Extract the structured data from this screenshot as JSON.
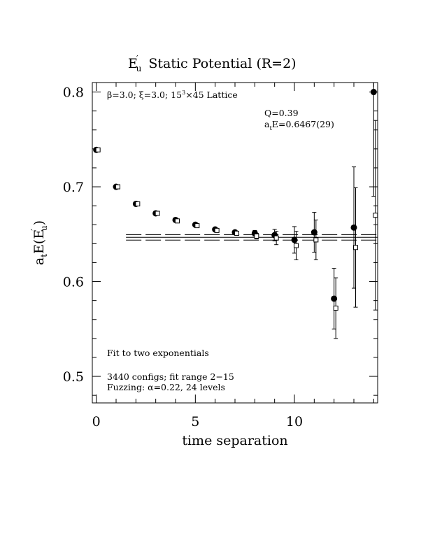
{
  "chart_data": {
    "type": "scatter",
    "title": "Static Potential (R=2)",
    "title_prefix": {
      "main": "E",
      "sup": "′",
      "sub": "u"
    },
    "xlabel": "time separation",
    "ylabel": {
      "main": "a",
      "sub1": "t",
      "mid": "E(E",
      "sup": "′",
      "sub2": "u",
      "close": ")"
    },
    "xlim": [
      -0.2,
      14.2
    ],
    "ylim": [
      0.472,
      0.81
    ],
    "x_ticks": [
      0,
      5,
      10
    ],
    "x_tick_labels": [
      "0",
      "5",
      "10"
    ],
    "y_ticks": [
      0.5,
      0.6,
      0.7,
      0.8
    ],
    "y_tick_labels": [
      "0.5",
      "0.6",
      "0.7",
      "0.8"
    ],
    "annotations": {
      "lattice_prefix": "β=3.0; ξ=3.0; 15",
      "lattice_sup": "3",
      "lattice_suffix": "×45 Lattice",
      "q_value": "Q=0.39",
      "energy_prefix": "a",
      "energy_sub": "t",
      "energy_suffix": "E=0.6467(29)",
      "fit_type": "Fit to two exponentials",
      "configs": "3440 configs; fit range 2−15",
      "fuzzing": "Fuzzing: α=0.22, 24 levels"
    },
    "fit": {
      "value": 0.6467,
      "error": 0.0029,
      "x_range": [
        1.5,
        14.2
      ]
    },
    "series": [
      {
        "marker": "filled-circle",
        "points": [
          {
            "x": 0,
            "y": 0.739,
            "err": 0
          },
          {
            "x": 1,
            "y": 0.7,
            "err": 0
          },
          {
            "x": 2,
            "y": 0.682,
            "err": 0
          },
          {
            "x": 3,
            "y": 0.672,
            "err": 0
          },
          {
            "x": 4,
            "y": 0.665,
            "err": 0
          },
          {
            "x": 5,
            "y": 0.66,
            "err": 0
          },
          {
            "x": 6,
            "y": 0.655,
            "err": 0.001
          },
          {
            "x": 7,
            "y": 0.652,
            "err": 0.002
          },
          {
            "x": 8,
            "y": 0.651,
            "err": 0.003
          },
          {
            "x": 9,
            "y": 0.649,
            "err": 0.006
          },
          {
            "x": 10,
            "y": 0.644,
            "err": 0.014
          },
          {
            "x": 11,
            "y": 0.652,
            "err": 0.021
          },
          {
            "x": 12,
            "y": 0.582,
            "err": 0.032
          },
          {
            "x": 13,
            "y": 0.657,
            "err": 0.064
          },
          {
            "x": 14,
            "y": 0.8,
            "err": 0.11
          }
        ]
      },
      {
        "marker": "open-square",
        "points": [
          {
            "x": 0,
            "y": 0.739,
            "err": 0
          },
          {
            "x": 1,
            "y": 0.7,
            "err": 0
          },
          {
            "x": 2,
            "y": 0.682,
            "err": 0
          },
          {
            "x": 3,
            "y": 0.672,
            "err": 0
          },
          {
            "x": 4,
            "y": 0.664,
            "err": 0
          },
          {
            "x": 5,
            "y": 0.659,
            "err": 0
          },
          {
            "x": 6,
            "y": 0.654,
            "err": 0.001
          },
          {
            "x": 7,
            "y": 0.651,
            "err": 0.002
          },
          {
            "x": 8,
            "y": 0.648,
            "err": 0.003
          },
          {
            "x": 9,
            "y": 0.646,
            "err": 0.007
          },
          {
            "x": 10,
            "y": 0.638,
            "err": 0.015
          },
          {
            "x": 11,
            "y": 0.644,
            "err": 0.021
          },
          {
            "x": 12,
            "y": 0.572,
            "err": 0.032
          },
          {
            "x": 13,
            "y": 0.636,
            "err": 0.063
          },
          {
            "x": 14,
            "y": 0.67,
            "err": 0.1
          }
        ]
      }
    ],
    "grid": false,
    "legend": "none"
  }
}
